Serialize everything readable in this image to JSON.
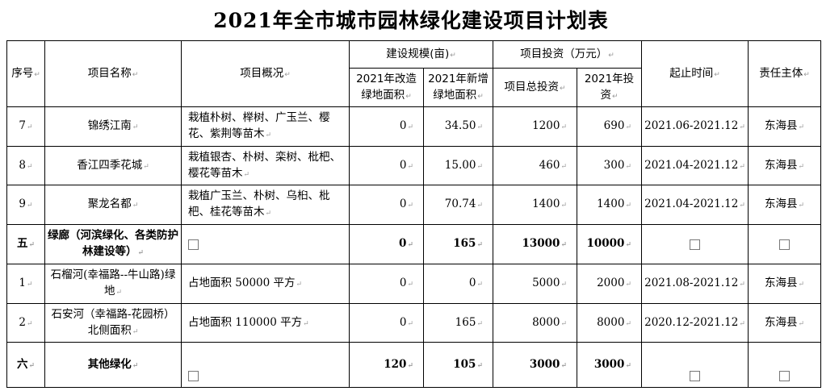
{
  "title": "2021年全市城市园林绿化建设项目计划表",
  "headers": {
    "index": "序号",
    "name": "项目名称",
    "overview": "项目概况",
    "scale": "建设规模(亩)",
    "scale_renovated": "2021年改造绿地面积",
    "scale_new": "2021年新增绿地面积",
    "investment": "项目投资（万元）",
    "invest_total": "项目总投资",
    "invest_2021": "2021年投资",
    "period": "起止时间",
    "owner": "责任主体"
  },
  "rows": [
    {
      "index": "7",
      "name": "锦绣江南",
      "overview": "栽植朴树、榉树、广玉兰、樱花、紫荆等苗木",
      "renovated": "0",
      "new": "34.50",
      "total": "1200",
      "y2021": "690",
      "period": "2021.06-2021.12",
      "owner": "东海县",
      "bold": false
    },
    {
      "index": "8",
      "name": "香江四季花城",
      "overview": "栽植银杏、朴树、栾树、枇杷、樱花等苗木",
      "renovated": "0",
      "new": "15.00",
      "total": "460",
      "y2021": "300",
      "period": "2021.04-2021.12",
      "owner": "东海县",
      "bold": false
    },
    {
      "index": "9",
      "name": "聚龙名都",
      "overview": "栽植广玉兰、朴树、乌桕、枇杷、桂花等苗木",
      "renovated": "0",
      "new": "70.74",
      "total": "1400",
      "y2021": "1400",
      "period": "2021.04-2021.12",
      "owner": "东海县",
      "bold": false
    },
    {
      "index": "五",
      "name": "绿廊（河滨绿化、各类防护林建设等）",
      "overview": "",
      "renovated": "0",
      "new": "165",
      "total": "13000",
      "y2021": "10000",
      "period": "",
      "owner": "",
      "bold": true
    },
    {
      "index": "1",
      "name": "石榴河(幸福路--牛山路)绿地",
      "overview": "占地面积 50000 平方",
      "renovated": "0",
      "new": "0",
      "total": "5000",
      "y2021": "2000",
      "period": "2021.08-2021.12",
      "owner": "东海县",
      "bold": false
    },
    {
      "index": "2",
      "name": "石安河（幸福路-花园桥）北侧面积",
      "overview": "占地面积 110000 平方",
      "renovated": "0",
      "new": "165",
      "total": "8000",
      "y2021": "8000",
      "period": "2020.12-2021.12",
      "owner": "东海县",
      "bold": false
    },
    {
      "index": "六",
      "name": "其他绿化",
      "overview": "",
      "renovated": "120",
      "new": "105",
      "total": "3000",
      "y2021": "3000",
      "period": "",
      "owner": "",
      "bold": true
    }
  ]
}
